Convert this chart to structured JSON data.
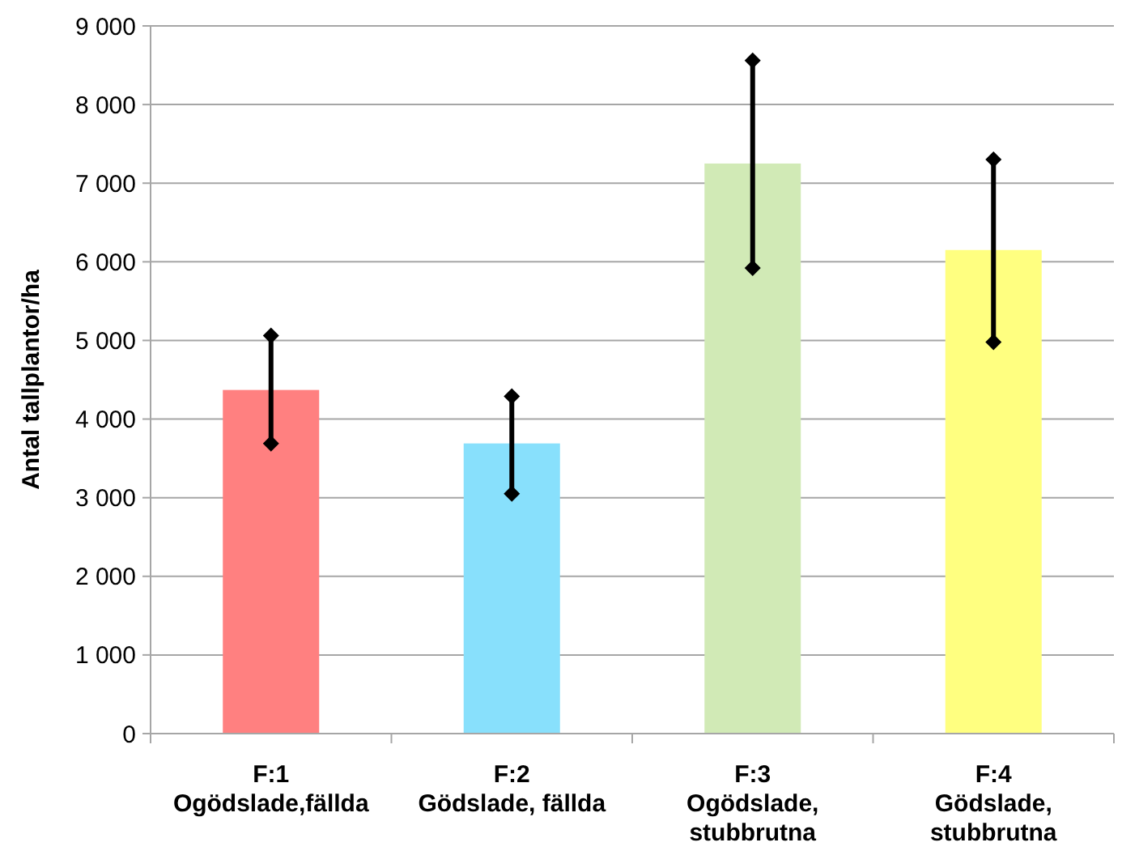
{
  "chart_data": {
    "type": "bar",
    "ylabel": "Antal tallplantor/ha",
    "categories": [
      "F:1\nOgödslade,fällda",
      "F:2\nGödslade, fällda",
      "F:3\nOgödslade,\nstubbrutna",
      "F:4\nGödslade,\nstubbrutna"
    ],
    "values": [
      4370,
      3690,
      7250,
      6150
    ],
    "colors": [
      "#ff8080",
      "#88e0fc",
      "#d1eab6",
      "#ffff80"
    ],
    "errors": [
      [
        3690,
        5060
      ],
      [
        3050,
        4290
      ],
      [
        5920,
        8560
      ],
      [
        4980,
        7300
      ]
    ],
    "ylim": [
      0,
      9000
    ],
    "yticks": [
      0,
      {
        "value": 1000,
        "label": "1 000"
      },
      {
        "value": 2000,
        "label": "2 000"
      },
      {
        "value": 3000,
        "label": "3 000"
      },
      {
        "value": 4000,
        "label": "4 000"
      },
      {
        "value": 5000,
        "label": "5 000"
      },
      {
        "value": 6000,
        "label": "6 000"
      },
      {
        "value": 7000,
        "label": "7 000"
      },
      {
        "value": 8000,
        "label": "8 000"
      },
      {
        "value": 9000,
        "label": "9 000"
      }
    ],
    "grid": "y",
    "legend": false
  }
}
